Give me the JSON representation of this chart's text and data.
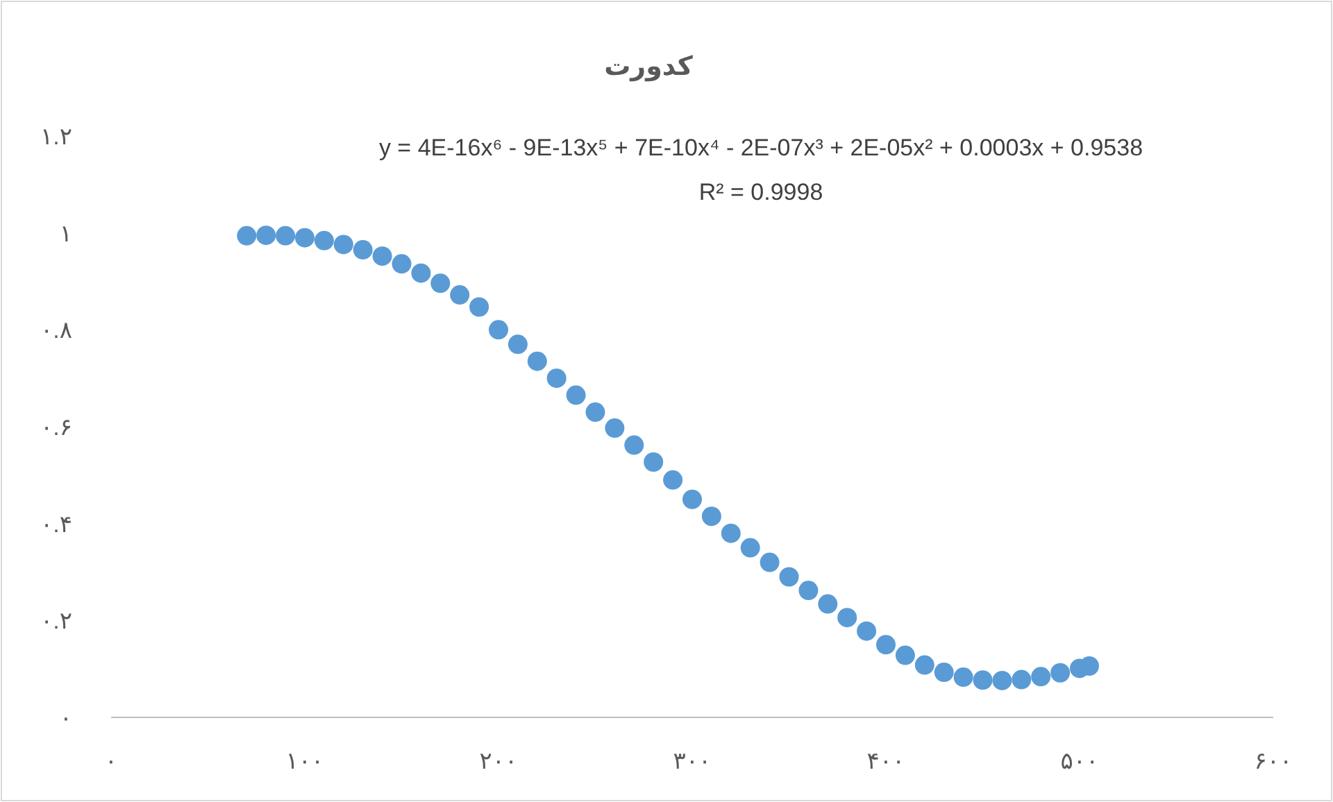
{
  "chart_data": {
    "type": "scatter",
    "title": "کدورت",
    "annotations": [
      "y = 4E-16x⁶ - 9E-13x⁵ + 7E-10x⁴ - 2E-07x³ + 2E-05x² + 0.0003x + 0.9538",
      "R² = 0.9998"
    ],
    "series": [
      {
        "color": "#5b9bd5",
        "x": [
          70,
          80,
          90,
          100,
          110,
          120,
          130,
          140,
          150,
          160,
          170,
          180,
          190,
          200,
          210,
          220,
          230,
          240,
          250,
          260,
          270,
          280,
          290,
          300,
          310,
          320,
          330,
          340,
          350,
          360,
          370,
          380,
          390,
          400,
          410,
          420,
          430,
          440,
          450,
          460,
          470,
          480,
          490,
          500,
          505
        ],
        "values": [
          0.994,
          0.995,
          0.994,
          0.99,
          0.984,
          0.976,
          0.965,
          0.952,
          0.936,
          0.917,
          0.896,
          0.872,
          0.847,
          0.8,
          0.77,
          0.735,
          0.7,
          0.665,
          0.63,
          0.597,
          0.562,
          0.527,
          0.49,
          0.45,
          0.415,
          0.38,
          0.35,
          0.32,
          0.29,
          0.262,
          0.234,
          0.206,
          0.178,
          0.15,
          0.128,
          0.108,
          0.093,
          0.083,
          0.077,
          0.076,
          0.078,
          0.084,
          0.092,
          0.101,
          0.106
        ]
      }
    ],
    "xlim": [
      0,
      600
    ],
    "xticks": [
      {
        "value": 0,
        "label": "۰"
      },
      {
        "value": 100,
        "label": "۱۰۰"
      },
      {
        "value": 200,
        "label": "۲۰۰"
      },
      {
        "value": 300,
        "label": "۳۰۰"
      },
      {
        "value": 400,
        "label": "۴۰۰"
      },
      {
        "value": 500,
        "label": "۵۰۰"
      },
      {
        "value": 600,
        "label": "۶۰۰"
      }
    ],
    "ylim": [
      0,
      1.2
    ],
    "yticks": [
      {
        "value": 0,
        "label": "۰"
      },
      {
        "value": 0.2,
        "label": "۰.۲"
      },
      {
        "value": 0.4,
        "label": "۰.۴"
      },
      {
        "value": 0.6,
        "label": "۰.۶"
      },
      {
        "value": 0.8,
        "label": "۰.۸"
      },
      {
        "value": 1,
        "label": "۱"
      },
      {
        "value": 1.2,
        "label": "۱.۲"
      }
    ],
    "marker": "circle",
    "grid": false
  }
}
